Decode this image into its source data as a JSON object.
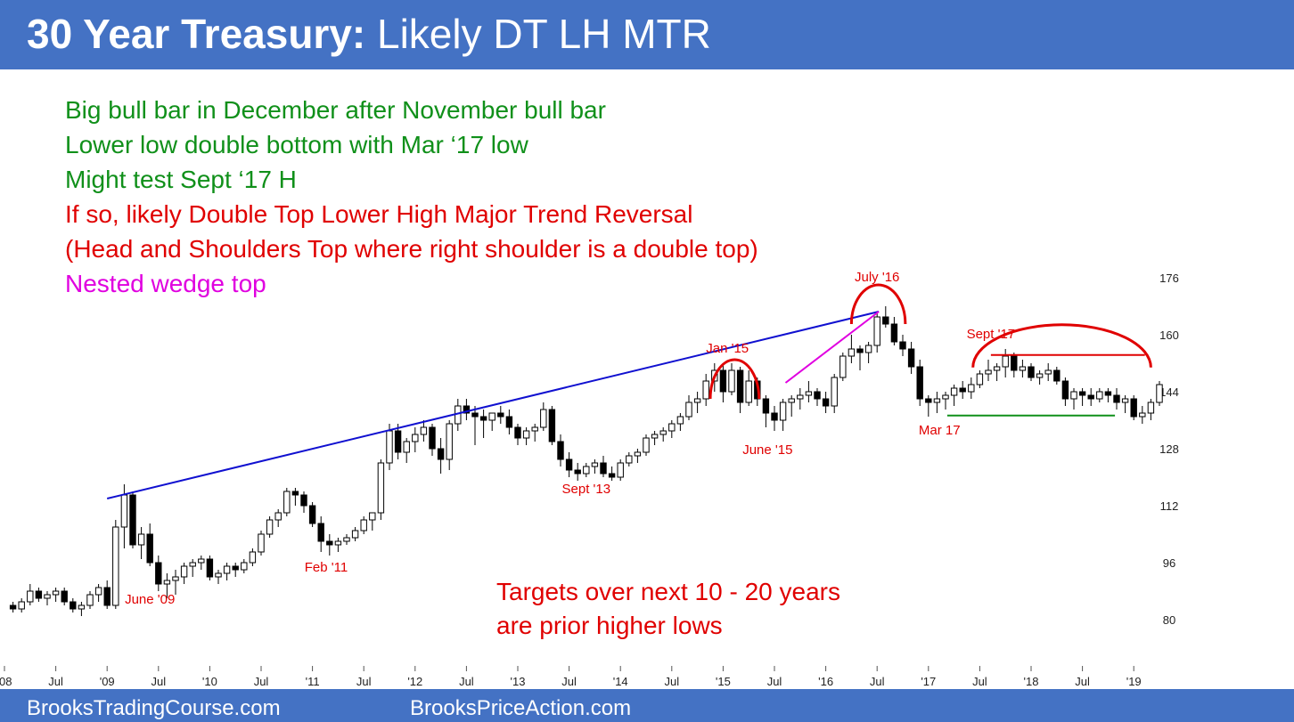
{
  "title_bold": "30 Year Treasury:",
  "title_rest": "Likely DT LH MTR",
  "notes": [
    {
      "text": "Big bull bar in December after November bull bar",
      "color": "#10901a"
    },
    {
      "text": "Lower low double bottom with Mar ‘17 low",
      "color": "#10901a"
    },
    {
      "text": "Might test Sept ‘17 H",
      "color": "#10901a"
    },
    {
      "text": "If so, likely Double Top Lower High Major Trend Reversal",
      "color": "#e00000"
    },
    {
      "text": "(Head and Shoulders Top where right shoulder is a double top)",
      "color": "#e00000"
    },
    {
      "text": "Nested wedge top",
      "color": "#e000e0"
    }
  ],
  "targets_line1": "Targets over next 10 - 20 years",
  "targets_line2": "are prior higher lows",
  "footer_left": "BrooksTradingCourse.com",
  "footer_right": "BrooksPriceAction.com",
  "colors": {
    "header": "#4472c4",
    "green": "#10901a",
    "red": "#e00000",
    "magenta": "#e000e0",
    "blue": "#1010d0"
  },
  "chart_data": {
    "type": "candlestick",
    "period": "monthly",
    "y_ticks": [
      80,
      96,
      112,
      128,
      144,
      160,
      176
    ],
    "ylim": [
      70,
      180
    ],
    "x_ticks": [
      "'08",
      "Jul",
      "'09",
      "Jul",
      "'10",
      "Jul",
      "'11",
      "Jul",
      "'12",
      "Jul",
      "'13",
      "Jul",
      "'14",
      "Jul",
      "'15",
      "Jul",
      "'16",
      "Jul",
      "'17",
      "Jul",
      "'18",
      "Jul",
      "'19"
    ],
    "x_tick_months": [
      0,
      6,
      12,
      18,
      24,
      30,
      36,
      42,
      48,
      54,
      60,
      66,
      72,
      78,
      84,
      90,
      96,
      102,
      108,
      114,
      120,
      126,
      132
    ],
    "month_start": 1.0,
    "month_width": 9.58,
    "candles": [
      [
        84,
        85,
        82,
        83
      ],
      [
        83,
        86,
        82,
        85
      ],
      [
        85,
        90,
        84,
        88
      ],
      [
        88,
        89,
        85,
        86
      ],
      [
        86,
        88,
        84,
        87
      ],
      [
        87,
        89,
        85,
        88
      ],
      [
        88,
        89,
        84,
        85
      ],
      [
        85,
        86,
        82,
        83
      ],
      [
        83,
        85,
        81,
        84
      ],
      [
        84,
        88,
        83,
        87
      ],
      [
        87,
        90,
        85,
        89
      ],
      [
        89,
        91,
        83,
        84
      ],
      [
        84,
        108,
        83,
        106
      ],
      [
        106,
        118,
        100,
        115
      ],
      [
        115,
        116,
        100,
        101
      ],
      [
        101,
        106,
        97,
        104
      ],
      [
        104,
        107,
        95,
        96
      ],
      [
        96,
        98,
        88,
        90
      ],
      [
        90,
        93,
        86,
        91
      ],
      [
        91,
        94,
        87,
        92
      ],
      [
        92,
        96,
        90,
        95
      ],
      [
        95,
        97,
        92,
        96
      ],
      [
        96,
        98,
        94,
        97
      ],
      [
        97,
        98,
        91,
        92
      ],
      [
        92,
        94,
        90,
        93
      ],
      [
        93,
        96,
        91,
        95
      ],
      [
        95,
        96,
        92,
        94
      ],
      [
        94,
        97,
        93,
        96
      ],
      [
        96,
        100,
        95,
        99
      ],
      [
        99,
        105,
        98,
        104
      ],
      [
        104,
        109,
        103,
        108
      ],
      [
        108,
        111,
        106,
        110
      ],
      [
        110,
        117,
        109,
        116
      ],
      [
        116,
        117,
        112,
        115
      ],
      [
        115,
        116,
        110,
        112
      ],
      [
        112,
        113,
        106,
        107
      ],
      [
        107,
        109,
        99,
        102
      ],
      [
        102,
        104,
        98,
        101
      ],
      [
        101,
        103,
        99,
        102
      ],
      [
        102,
        104,
        101,
        103
      ],
      [
        103,
        106,
        102,
        105
      ],
      [
        105,
        109,
        104,
        108
      ],
      [
        108,
        110,
        105,
        110
      ],
      [
        110,
        125,
        108,
        124
      ],
      [
        124,
        135,
        122,
        133
      ],
      [
        133,
        135,
        125,
        127
      ],
      [
        127,
        131,
        124,
        130
      ],
      [
        130,
        134,
        127,
        132
      ],
      [
        132,
        136,
        130,
        134
      ],
      [
        134,
        135,
        126,
        128
      ],
      [
        128,
        131,
        121,
        125
      ],
      [
        125,
        136,
        122,
        135
      ],
      [
        135,
        142,
        133,
        140
      ],
      [
        140,
        142,
        136,
        138
      ],
      [
        138,
        140,
        129,
        137
      ],
      [
        137,
        139,
        131,
        136
      ],
      [
        136,
        138,
        133,
        138
      ],
      [
        138,
        140,
        135,
        137
      ],
      [
        137,
        139,
        132,
        134
      ],
      [
        134,
        135,
        129,
        131
      ],
      [
        131,
        134,
        129,
        133
      ],
      [
        133,
        135,
        130,
        134
      ],
      [
        134,
        141,
        133,
        139
      ],
      [
        139,
        140,
        129,
        130
      ],
      [
        130,
        132,
        123,
        125
      ],
      [
        125,
        127,
        120,
        122
      ],
      [
        122,
        124,
        119,
        121
      ],
      [
        121,
        124,
        120,
        123
      ],
      [
        123,
        125,
        121,
        124
      ],
      [
        124,
        126,
        120,
        121
      ],
      [
        121,
        123,
        119,
        120
      ],
      [
        120,
        125,
        119,
        124
      ],
      [
        124,
        127,
        123,
        126
      ],
      [
        126,
        128,
        124,
        127
      ],
      [
        127,
        132,
        126,
        131
      ],
      [
        131,
        133,
        129,
        132
      ],
      [
        132,
        134,
        130,
        133
      ],
      [
        133,
        136,
        131,
        135
      ],
      [
        135,
        138,
        133,
        137
      ],
      [
        137,
        143,
        136,
        141
      ],
      [
        141,
        144,
        138,
        142
      ],
      [
        142,
        149,
        140,
        147
      ],
      [
        147,
        152,
        144,
        150
      ],
      [
        150,
        152,
        141,
        144
      ],
      [
        144,
        152,
        143,
        150
      ],
      [
        150,
        151,
        138,
        141
      ],
      [
        141,
        150,
        140,
        147
      ],
      [
        147,
        148,
        140,
        142
      ],
      [
        142,
        143,
        134,
        138
      ],
      [
        138,
        140,
        133,
        136
      ],
      [
        136,
        142,
        133,
        141
      ],
      [
        141,
        143,
        137,
        142
      ],
      [
        142,
        145,
        139,
        143
      ],
      [
        143,
        147,
        141,
        144
      ],
      [
        144,
        145,
        140,
        142
      ],
      [
        142,
        144,
        138,
        140
      ],
      [
        140,
        149,
        138,
        148
      ],
      [
        148,
        155,
        147,
        154
      ],
      [
        154,
        160,
        152,
        156
      ],
      [
        156,
        157,
        150,
        155
      ],
      [
        155,
        158,
        152,
        157
      ],
      [
        157,
        166,
        155,
        165
      ],
      [
        165,
        168,
        162,
        163
      ],
      [
        163,
        165,
        157,
        158
      ],
      [
        158,
        160,
        154,
        156
      ],
      [
        156,
        158,
        149,
        151
      ],
      [
        151,
        153,
        140,
        142
      ],
      [
        142,
        143,
        137,
        141
      ],
      [
        141,
        144,
        138,
        142
      ],
      [
        142,
        144,
        139,
        143
      ],
      [
        143,
        146,
        140,
        145
      ],
      [
        145,
        147,
        142,
        144
      ],
      [
        144,
        148,
        142,
        146
      ],
      [
        146,
        150,
        145,
        149
      ],
      [
        149,
        153,
        147,
        150
      ],
      [
        150,
        152,
        147,
        151
      ],
      [
        151,
        156,
        148,
        154
      ],
      [
        154,
        155,
        148,
        150
      ],
      [
        150,
        153,
        148,
        151
      ],
      [
        151,
        152,
        147,
        148
      ],
      [
        148,
        150,
        146,
        149
      ],
      [
        149,
        152,
        147,
        150
      ],
      [
        150,
        151,
        146,
        147
      ],
      [
        147,
        148,
        140,
        142
      ],
      [
        142,
        145,
        139,
        144
      ],
      [
        144,
        145,
        140,
        143
      ],
      [
        143,
        145,
        140,
        142
      ],
      [
        142,
        145,
        141,
        144
      ],
      [
        144,
        145,
        141,
        143
      ],
      [
        143,
        145,
        139,
        141
      ],
      [
        141,
        143,
        138,
        142
      ],
      [
        142,
        143,
        136,
        137
      ],
      [
        137,
        140,
        135,
        138
      ],
      [
        138,
        142,
        136,
        141
      ],
      [
        141,
        147,
        140,
        146
      ]
    ],
    "annotations": [
      {
        "text": "June '09",
        "x": 17,
        "y": 84.5,
        "color": "#e00000"
      },
      {
        "text": "Feb '11",
        "x": 37.6,
        "y": 93.5,
        "color": "#e00000"
      },
      {
        "text": "Sept '13",
        "x": 68,
        "y": 115.5,
        "color": "#e00000"
      },
      {
        "text": "Jan '15",
        "x": 84.5,
        "y": 155,
        "color": "#e00000"
      },
      {
        "text": "June '15",
        "x": 89.2,
        "y": 126.5,
        "color": "#e00000"
      },
      {
        "text": "July '16",
        "x": 102,
        "y": 175,
        "color": "#e00000"
      },
      {
        "text": "Sept '17",
        "x": 115.3,
        "y": 159,
        "color": "#e00000"
      },
      {
        "text": "Mar 17",
        "x": 109.3,
        "y": 132,
        "color": "#e00000"
      }
    ],
    "lines": [
      {
        "x1": 12,
        "y1": 114,
        "x2": 102.2,
        "y2": 166.5,
        "color": "#1010d0"
      },
      {
        "x1": 91.3,
        "y1": 146.5,
        "x2": 102.2,
        "y2": 166.5,
        "color": "#e000e0"
      },
      {
        "x1": 110.2,
        "y1": 137.3,
        "x2": 129.8,
        "y2": 137.3,
        "color": "#10901a"
      },
      {
        "x1": 115.3,
        "y1": 154.3,
        "x2": 133.3,
        "y2": 154.3,
        "color": "#e00000"
      }
    ],
    "arcs": [
      {
        "x1": 82.5,
        "x2": 88.2,
        "y": 142,
        "h": 11,
        "color": "#e00000"
      },
      {
        "x1": 99,
        "x2": 105.3,
        "y": 163,
        "h": 11,
        "color": "#e00000"
      },
      {
        "x1": 113.2,
        "x2": 134,
        "y": 150.8,
        "h": 12,
        "color": "#e00000"
      }
    ]
  }
}
